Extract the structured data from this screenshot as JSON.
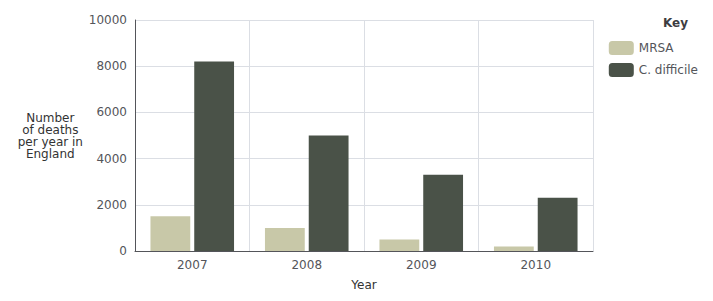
{
  "chart_data": {
    "type": "bar",
    "xlabel": "Year",
    "ylabel": "Number\nof deaths\nper year in\nEngland",
    "legend_title": "Key",
    "categories": [
      "2007",
      "2008",
      "2009",
      "2010"
    ],
    "series": [
      {
        "name": "MRSA",
        "color": "#c8c8a8",
        "values": [
          1500,
          1000,
          500,
          200
        ]
      },
      {
        "name": "C. difficile",
        "color": "#4a5248",
        "values": [
          8200,
          5000,
          3300,
          2300
        ]
      }
    ],
    "ylim": [
      0,
      10000
    ],
    "yticks": [
      0,
      2000,
      4000,
      6000,
      8000,
      10000
    ],
    "grid": true,
    "legend": "upper right"
  }
}
